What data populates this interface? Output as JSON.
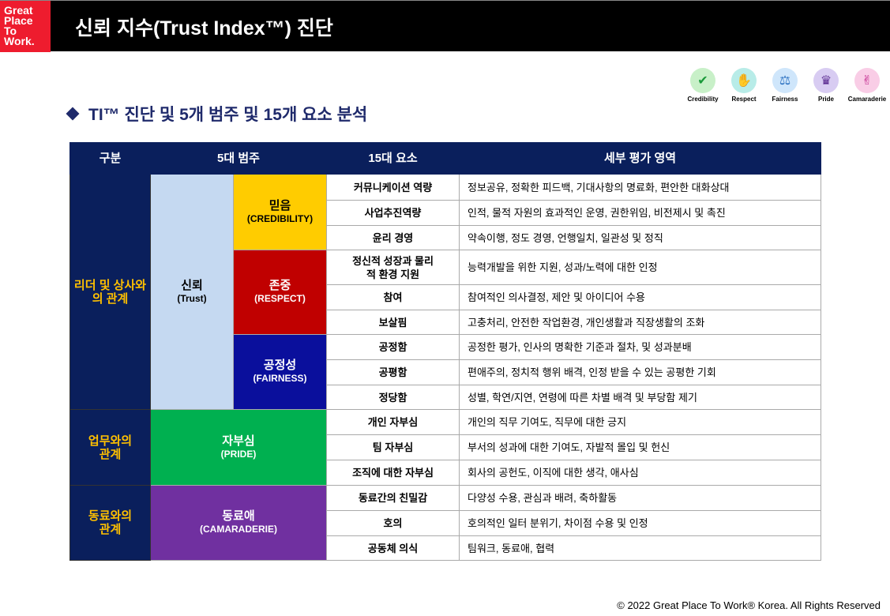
{
  "header": {
    "logo": [
      "Great",
      "Place",
      "To",
      "Work."
    ],
    "title": "신뢰 지수(Trust Index™) 진단"
  },
  "icons": [
    {
      "name": "credibility-icon",
      "label": "Credibility",
      "color": "#c8f0c8"
    },
    {
      "name": "respect-icon",
      "label": "Respect",
      "color": "#b8ece8"
    },
    {
      "name": "fairness-icon",
      "label": "Fairness",
      "color": "#cfe6fb"
    },
    {
      "name": "pride-icon",
      "label": "Pride",
      "color": "#d8ccf2"
    },
    {
      "name": "camaraderie-icon",
      "label": "Camaraderie",
      "color": "#f9cde6"
    }
  ],
  "subtitle": "TI™ 진단 및 5개 범주 및 15개 요소 분석",
  "table": {
    "headers": [
      "구분",
      "5대 범주",
      "15대 요소",
      "세부 평가 영역"
    ],
    "groups": [
      "리더 및 상사와의 관계",
      "업무와의 관계",
      "동료와의 관계"
    ],
    "trust": {
      "ko": "신뢰",
      "en": "(Trust)"
    },
    "categories": [
      {
        "ko": "믿음",
        "en": "(CREDIBILITY)"
      },
      {
        "ko": "존중",
        "en": "(RESPECT)"
      },
      {
        "ko": "공정성",
        "en": "(FAIRNESS)"
      },
      {
        "ko": "자부심",
        "en": "(PRIDE)"
      },
      {
        "ko": "동료애",
        "en": "(CAMARADERIE)"
      }
    ],
    "rows": [
      {
        "element": "커뮤니케이션 역량",
        "detail": "정보공유, 정확한 피드백, 기대사항의 명료화, 편안한 대화상대"
      },
      {
        "element": "사업추진역량",
        "detail": "인적, 물적 자원의 효과적인 운영, 권한위임, 비전제시 및 촉진"
      },
      {
        "element": "윤리 경영",
        "detail": "약속이행, 정도 경영, 언행일치, 일관성 및 정직"
      },
      {
        "element": "정신적 성장과 물리적 환경 지원",
        "detail": "능력개발을 위한 지원, 성과/노력에 대한 인정"
      },
      {
        "element": "참여",
        "detail": "참여적인 의사결정, 제안 및 아이디어 수용"
      },
      {
        "element": "보살핌",
        "detail": "고충처리, 안전한 작업환경, 개인생활과 직장생활의 조화"
      },
      {
        "element": "공정함",
        "detail": "공정한 평가, 인사의 명확한 기준과 절차, 및 성과분배"
      },
      {
        "element": "공평함",
        "detail": "편애주의, 정치적 행위 배격, 인정 받을 수 있는 공평한 기회"
      },
      {
        "element": "정당함",
        "detail": "성별, 학연/지연, 연령에 따른 차별 배격 및 부당함 제기"
      },
      {
        "element": "개인 자부심",
        "detail": "개인의 직무 기여도, 직무에 대한 긍지"
      },
      {
        "element": "팀 자부심",
        "detail": "부서의 성과에 대한 기여도, 자발적 몰입 및 헌신"
      },
      {
        "element": "조직에 대한 자부심",
        "detail": "회사의 공헌도, 이직에 대한 생각, 애사심"
      },
      {
        "element": "동료간의 친밀감",
        "detail": "다양성 수용, 관심과 배려, 축하활동"
      },
      {
        "element": "호의",
        "detail": "호의적인 일터 분위기, 차이점 수용 및 인정"
      },
      {
        "element": "공동체 의식",
        "detail": "팀워크, 동료애, 협력"
      }
    ]
  },
  "footer": "© 2022 Great Place To Work® Korea. All Rights Reserved"
}
